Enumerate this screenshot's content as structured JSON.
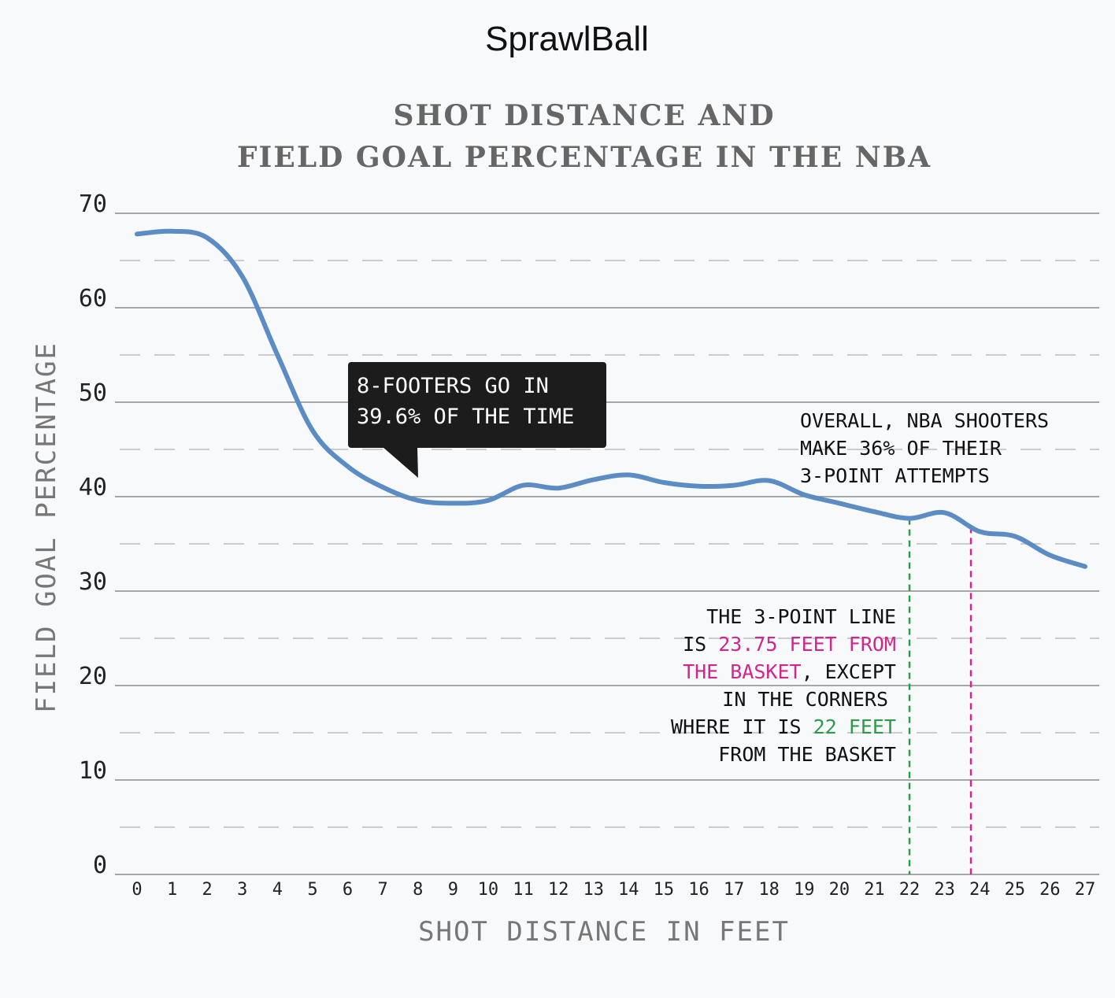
{
  "app": {
    "title": "SprawlBall"
  },
  "chart_data": {
    "type": "line",
    "title_lines": [
      "SHOT DISTANCE AND",
      "FIELD GOAL PERCENTAGE IN THE NBA"
    ],
    "xlabel": "SHOT DISTANCE IN FEET",
    "ylabel": "FIELD GOAL PERCENTAGE",
    "xlim": [
      0,
      27
    ],
    "ylim": [
      0,
      70
    ],
    "x_ticks": [
      0,
      1,
      2,
      3,
      4,
      5,
      6,
      7,
      8,
      9,
      10,
      11,
      12,
      13,
      14,
      15,
      16,
      17,
      18,
      19,
      20,
      21,
      22,
      23,
      24,
      25,
      26,
      27
    ],
    "y_ticks": [
      0,
      10,
      20,
      30,
      40,
      50,
      60,
      70
    ],
    "grid": true,
    "line_color": "#5b8cc4",
    "series": [
      {
        "x": [
          0,
          1,
          2,
          3,
          4,
          5,
          6,
          7,
          8,
          9,
          10,
          11,
          12,
          13,
          14,
          15,
          16,
          17,
          18,
          19,
          20,
          21,
          22,
          23,
          24,
          25,
          26,
          27
        ],
        "values": [
          67.8,
          68.1,
          67.4,
          63.3,
          55.0,
          47.0,
          43.2,
          41.0,
          39.6,
          39.3,
          39.6,
          41.2,
          40.9,
          41.8,
          42.3,
          41.5,
          41.1,
          41.2,
          41.7,
          40.2,
          39.3,
          38.4,
          37.7,
          38.3,
          36.3,
          35.8,
          33.8,
          32.6
        ]
      }
    ],
    "reference_lines": [
      {
        "x": 22,
        "color": "#2e9a4a"
      },
      {
        "x": 23.75,
        "color": "#d0268e"
      }
    ],
    "annotations": {
      "callout": {
        "lines": [
          "8-FOOTERS GO IN",
          "39.6% OF THE TIME"
        ]
      },
      "overall": {
        "lines": [
          "OVERALL, NBA SHOOTERS",
          "MAKE 36% OF THEIR",
          "3-POINT ATTEMPTS"
        ]
      },
      "three_point": {
        "line1": "THE 3-POINT LINE",
        "line2_a": "IS ",
        "line2_b": "23.75 FEET FROM",
        "line3_a": "THE BASKET",
        "line3_b": ", EXCEPT",
        "line4": "IN THE CORNERS",
        "line5_a": "WHERE IT IS ",
        "line5_b": "22 FEET",
        "line6": "FROM THE BASKET",
        "magenta": "#d0268e",
        "green": "#2e9a4a"
      }
    }
  }
}
